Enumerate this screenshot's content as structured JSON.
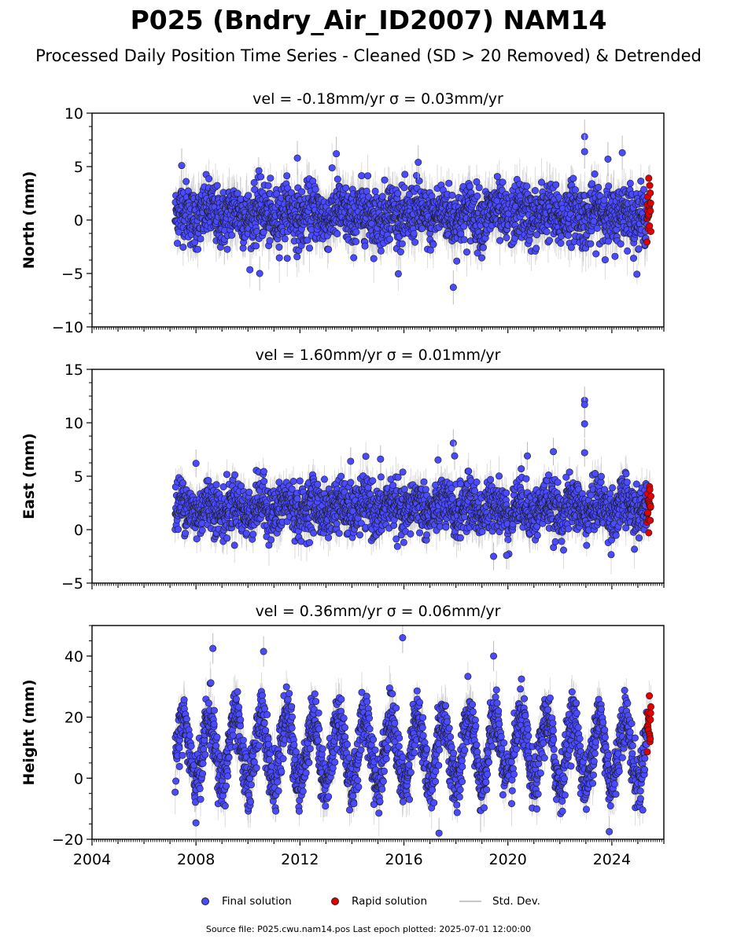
{
  "header": {
    "title": "P025 (Bndry_Air_ID2007) NAM14",
    "subtitle": "Processed Daily Position Time Series - Cleaned (SD > 20 Removed) & Detrended"
  },
  "footer": {
    "note": "Source file: P025.cwu.nam14.pos  Last epoch plotted: 2025-07-01 12:00:00"
  },
  "legend": {
    "items": [
      {
        "label": "Final solution",
        "kind": "marker",
        "color": "#4a4aff"
      },
      {
        "label": "Rapid solution",
        "kind": "marker",
        "color": "#e00000"
      },
      {
        "label": "Std. Dev.",
        "kind": "line",
        "color": "#c8c8c8"
      }
    ]
  },
  "colors": {
    "final": "#4a4aff",
    "rapid": "#e00000",
    "stddev": "#bdbdbd",
    "marker_edge": "#1a1a1a"
  },
  "chart_data": [
    {
      "type": "scatter",
      "component": "north",
      "title": "vel = -0.18mm/yr   σ = 0.03mm/yr",
      "ylabel": "North (mm)",
      "xlim": [
        2004,
        2026
      ],
      "ylim": [
        -10,
        10
      ],
      "yticks": [
        -10,
        -5,
        0,
        5,
        10
      ],
      "yticklabels": [
        "−10",
        "−5",
        "0",
        "5",
        "10"
      ],
      "data_start": 2007.2,
      "rapid_start": 2025.35,
      "data_end": 2025.5,
      "seasonal_amplitude": 0.5,
      "scatter_sd": 1.35,
      "errorbar_halfwidth": 1.6,
      "series": [
        {
          "name": "Final solution",
          "x_range": [
            2007.2,
            2025.35
          ]
        },
        {
          "name": "Rapid solution",
          "x_range": [
            2025.35,
            2025.5
          ]
        }
      ],
      "outliers": [
        [
          2007.45,
          5.1
        ],
        [
          2010.45,
          -5.0
        ],
        [
          2011.9,
          5.8
        ],
        [
          2013.4,
          6.2
        ],
        [
          2016.55,
          5.4
        ],
        [
          2017.9,
          -6.3
        ],
        [
          2022.95,
          7.8
        ],
        [
          2022.95,
          6.4
        ],
        [
          2023.85,
          5.7
        ],
        [
          2024.4,
          6.3
        ]
      ]
    },
    {
      "type": "scatter",
      "component": "east",
      "title": "vel = 1.60mm/yr   σ = 0.01mm/yr",
      "ylabel": "East (mm)",
      "xlim": [
        2004,
        2026
      ],
      "ylim": [
        -5,
        15
      ],
      "yticks": [
        -5,
        0,
        5,
        10,
        15
      ],
      "yticklabels": [
        "−5",
        "0",
        "5",
        "10",
        "15"
      ],
      "data_start": 2007.2,
      "rapid_start": 2025.35,
      "data_end": 2025.5,
      "mean": 2.0,
      "seasonal_amplitude": 0.6,
      "scatter_sd": 1.2,
      "errorbar_halfwidth": 1.3,
      "series": [
        {
          "name": "Final solution",
          "x_range": [
            2007.2,
            2025.35
          ]
        },
        {
          "name": "Rapid solution",
          "x_range": [
            2025.35,
            2025.5
          ]
        }
      ],
      "outliers": [
        [
          2008.0,
          6.2
        ],
        [
          2013.95,
          6.4
        ],
        [
          2015.1,
          6.6
        ],
        [
          2017.9,
          8.1
        ],
        [
          2017.95,
          6.9
        ],
        [
          2019.45,
          -2.5
        ],
        [
          2019.95,
          -2.4
        ],
        [
          2020.75,
          6.9
        ],
        [
          2021.75,
          7.3
        ],
        [
          2022.95,
          12.1
        ],
        [
          2022.95,
          11.7
        ],
        [
          2022.95,
          9.9
        ],
        [
          2022.95,
          7.2
        ]
      ]
    },
    {
      "type": "scatter",
      "component": "height",
      "title": "vel = 0.36mm/yr   σ = 0.06mm/yr",
      "ylabel": "Height (mm)",
      "xlim": [
        2004,
        2026
      ],
      "ylim": [
        -20,
        50
      ],
      "yticks": [
        -20,
        0,
        20,
        40
      ],
      "yticklabels": [
        "−20",
        "0",
        "20",
        "40"
      ],
      "xticks": [
        2004,
        2008,
        2012,
        2016,
        2020,
        2024
      ],
      "xticklabels": [
        "2004",
        "2008",
        "2012",
        "2016",
        "2020",
        "2024"
      ],
      "data_start": 2007.2,
      "rapid_start": 2025.35,
      "data_end": 2025.5,
      "mean": 9.0,
      "seasonal_amplitude": 11.0,
      "scatter_sd": 4.5,
      "errorbar_halfwidth": 5.0,
      "series": [
        {
          "name": "Final solution",
          "x_range": [
            2007.2,
            2025.35
          ]
        },
        {
          "name": "Rapid solution",
          "x_range": [
            2025.35,
            2025.5
          ]
        }
      ],
      "outliers": [
        [
          2008.65,
          42.5
        ],
        [
          2010.6,
          41.5
        ],
        [
          2015.95,
          46.0
        ],
        [
          2019.45,
          40.0
        ],
        [
          2017.35,
          -18.0
        ],
        [
          2023.9,
          -17.5
        ]
      ]
    }
  ]
}
